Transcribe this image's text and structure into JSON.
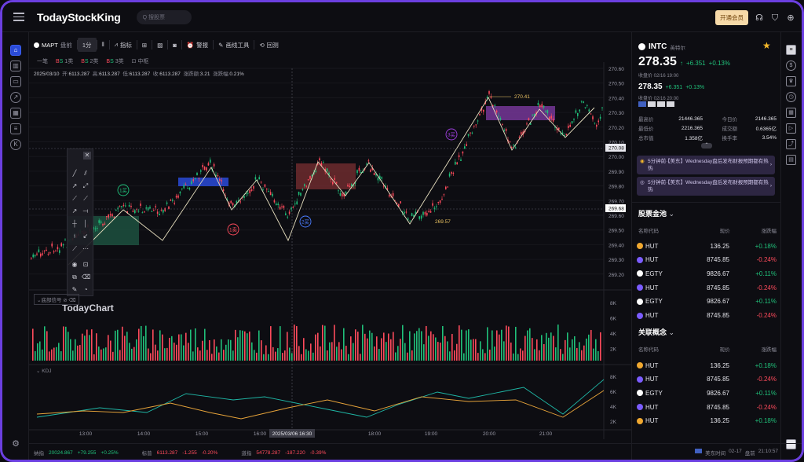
{
  "app": {
    "logo": "TodayStockKing",
    "search_placeholder": "Q 搜股票",
    "vip_button": "开通会员"
  },
  "toolbar": {
    "symbol": "MAPT",
    "session": "盘前",
    "interval": "1分",
    "items": [
      "指标",
      "警报",
      "画线工具",
      "回测"
    ]
  },
  "subtoolbar": [
    "一笔",
    "1类",
    "2类",
    "3类",
    "中枢"
  ],
  "info_line": {
    "date": "2025/03/10",
    "open_label": "开",
    "open": "6113.287",
    "high_label": "高",
    "high": "6113.287",
    "low_label": "低",
    "low": "6113.287",
    "close_label": "收",
    "close": "6113.287",
    "chg_label": "涨跌额",
    "chg": "3.21",
    "pct_label": "涨跌幅",
    "pct": "0.21%"
  },
  "chart_annotations": {
    "peak_label": "270.41",
    "trough_label": "269.57",
    "signals": [
      "1买",
      "1卖",
      "2买",
      "3买"
    ],
    "crosshair_time": "2025/03/06 16:30",
    "cross_price_a": "270.08",
    "cross_price_b": "269.68",
    "watermark": "TodayChart"
  },
  "colors": {
    "up": "#20c07a",
    "down": "#ff4b5c",
    "accent": "#6b3fe0",
    "zhongshu_green": "#1f5a46",
    "zhongshu_red": "#7a2f32",
    "zhongshu_blue": "#2a4bd8",
    "zhongshu_purple": "#7c3aa0"
  },
  "price_axis": [
    "270.60",
    "270.50",
    "270.40",
    "270.30",
    "270.20",
    "270.10",
    "270.00",
    "269.90",
    "269.80",
    "269.70",
    "269.60",
    "269.50",
    "269.40",
    "269.30",
    "269.20"
  ],
  "volume_panel": {
    "label": "底部信号",
    "axis": [
      "8K",
      "6K",
      "4K",
      "2K"
    ]
  },
  "kdj_panel": {
    "label": "KDJ",
    "axis": [
      "8K",
      "6K",
      "4K",
      "2K"
    ]
  },
  "time_axis": [
    "13:00",
    "14:00",
    "15:00",
    "16:00",
    "18:00",
    "19:00",
    "20:00",
    "21:00"
  ],
  "status_bar": {
    "items": [
      {
        "name": "纳指",
        "value": "20024.867",
        "chg": "+79.255",
        "pct": "+0.25%"
      },
      {
        "name": "标普",
        "value": "6113.287",
        "chg": "-1.255",
        "pct": "-0.20%"
      },
      {
        "name": "道指",
        "value": "54778.287",
        "chg": "-187.220",
        "pct": "-0.39%"
      }
    ],
    "market": "美东时间",
    "date": "02-17",
    "session": "盘前",
    "time": "21:10:57"
  },
  "quote": {
    "symbol": "INTC",
    "name": "英特尔",
    "price": "278.35",
    "chg": "+6.351",
    "pct": "+0.13%",
    "close_note": "收盘价 02/16 19:00",
    "price2": "278.35",
    "chg2": "+6.351",
    "pct2": "+0.13%",
    "close_note2": "收盘价 02/16 20:00",
    "stats": [
      {
        "k": "最高价",
        "v": "21446.365",
        "k2": "今日价",
        "v2": "2146.365"
      },
      {
        "k": "最低价",
        "v": "2216.365",
        "k2": "成交额",
        "v2": "0.6365亿"
      },
      {
        "k": "总市值",
        "v": "1.358亿",
        "k2": "换手率",
        "v2": "3.54%"
      }
    ],
    "news": [
      "5分钟前·【美东】Wednesday盘后发布财报预期都有热热",
      "5分钟前·【美东】Wednesday盘后发布财报预期都有热热"
    ]
  },
  "pool": {
    "title": "股票金池",
    "headers": [
      "名称代码",
      "现价",
      "涨跌幅"
    ],
    "rows": [
      {
        "name": "HUT",
        "price": "136.25",
        "pct": "+0.18%",
        "up": true
      },
      {
        "name": "HUT",
        "price": "8745.85",
        "pct": "-0.24%",
        "up": false
      },
      {
        "name": "EGTY",
        "price": "9826.67",
        "pct": "+0.11%",
        "up": true
      },
      {
        "name": "HUT",
        "price": "8745.85",
        "pct": "-0.24%",
        "up": false
      },
      {
        "name": "EGTY",
        "price": "9826.67",
        "pct": "+0.11%",
        "up": true
      },
      {
        "name": "HUT",
        "price": "8745.85",
        "pct": "-0.24%",
        "up": false
      }
    ]
  },
  "concept": {
    "title": "关联概念",
    "headers": [
      "名称代码",
      "现价",
      "涨跌幅"
    ],
    "rows": [
      {
        "name": "HUT",
        "price": "136.25",
        "pct": "+0.18%",
        "up": true
      },
      {
        "name": "HUT",
        "price": "8745.85",
        "pct": "-0.24%",
        "up": false
      },
      {
        "name": "EGTY",
        "price": "9826.67",
        "pct": "+0.11%",
        "up": true
      },
      {
        "name": "HUT",
        "price": "8745.85",
        "pct": "-0.24%",
        "up": false
      },
      {
        "name": "HUT",
        "price": "136.25",
        "pct": "+0.18%",
        "up": true
      }
    ]
  }
}
